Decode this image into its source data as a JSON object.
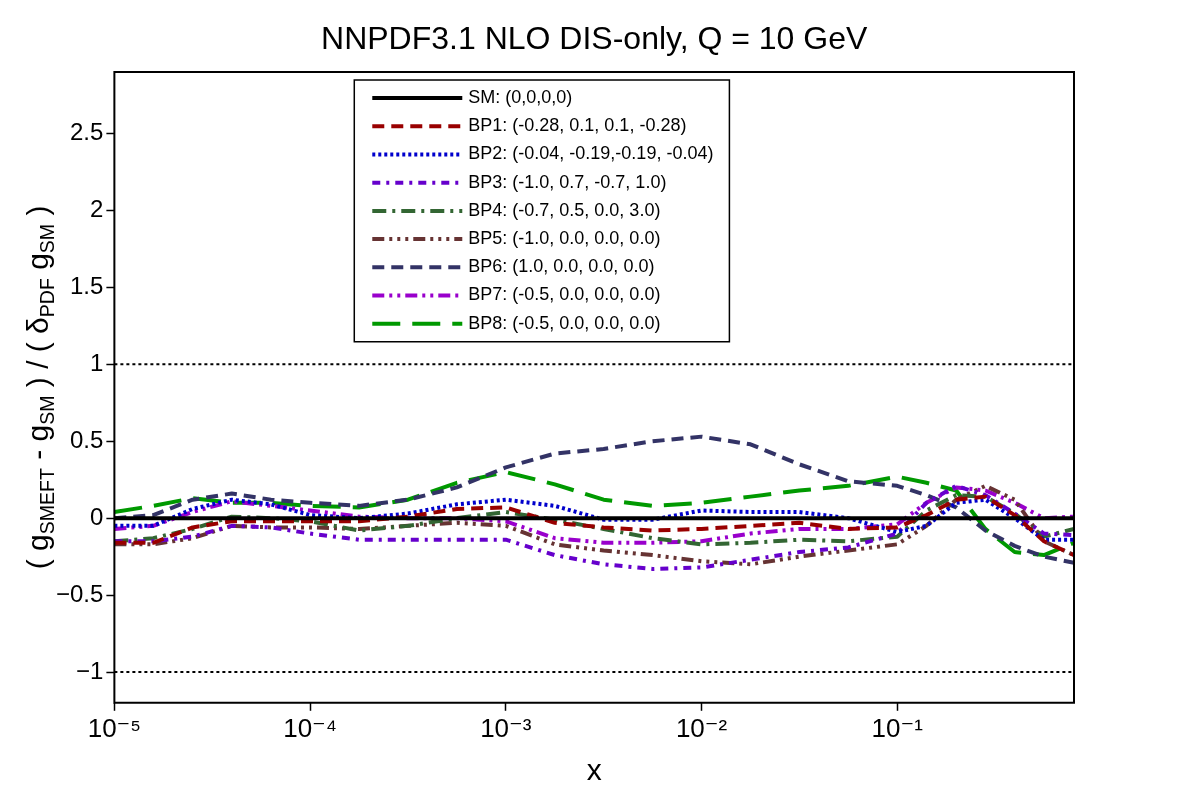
{
  "chart_data": {
    "type": "line",
    "title": "NNPDF3.1 NLO DIS-only, Q = 10 GeV",
    "xlabel": "x",
    "ylabel": "( g$_{SMEFT}$ - g$_{SM}$ ) / ( δ$_{PDF}$ g$_{SM}$ )",
    "x": [
      1e-05,
      1.58e-05,
      2.51e-05,
      3.98e-05,
      6.31e-05,
      0.0001,
      0.000178,
      0.000316,
      0.000562,
      0.001,
      0.00178,
      0.00316,
      0.00562,
      0.01,
      0.0178,
      0.0316,
      0.0562,
      0.1,
      0.141,
      0.2,
      0.282,
      0.398,
      0.562,
      0.8
    ],
    "series": [
      {
        "name": "SM: (0,0,0,0)",
        "color": "#000000",
        "line_style": "solid",
        "values": [
          0,
          0,
          0,
          0,
          0,
          0,
          0,
          0,
          0,
          0,
          0,
          0,
          0,
          0,
          0,
          0,
          0,
          0,
          0,
          0,
          0,
          0,
          0,
          0
        ]
      },
      {
        "name": "BP1: (-0.28, 0.1, 0.1, -0.28)",
        "color": "#990000",
        "line_style": "dashed",
        "values": [
          -0.16,
          -0.16,
          -0.06,
          -0.02,
          -0.02,
          -0.02,
          -0.02,
          0.01,
          0.06,
          0.07,
          -0.03,
          -0.06,
          -0.08,
          -0.07,
          -0.05,
          -0.03,
          -0.07,
          -0.06,
          0.02,
          0.12,
          0.14,
          0.02,
          -0.15,
          -0.24
        ]
      },
      {
        "name": "BP2: (-0.04, -0.19,-0.19, -0.04)",
        "color": "#0000cc",
        "line_style": "dotted",
        "values": [
          -0.05,
          -0.05,
          0.06,
          0.12,
          0.09,
          0.02,
          0,
          0.03,
          0.09,
          0.12,
          0.08,
          -0.01,
          -0.01,
          0.05,
          0.04,
          0.04,
          0,
          -0.09,
          -0.05,
          0.1,
          0.12,
          0,
          -0.14,
          -0.14
        ]
      },
      {
        "name": "BP3: (-1.0, 0.7, -0.7, 1.0)",
        "color": "#6600cc",
        "line_style": "dashdot",
        "values": [
          -0.15,
          -0.15,
          -0.12,
          -0.05,
          -0.06,
          -0.1,
          -0.14,
          -0.14,
          -0.14,
          -0.14,
          -0.24,
          -0.3,
          -0.33,
          -0.32,
          -0.27,
          -0.22,
          -0.19,
          -0.1,
          0.1,
          0.21,
          0.15,
          0.03,
          -0.1,
          -0.11
        ]
      },
      {
        "name": "BP4: (-0.7, 0.5, 0.0, 3.0)",
        "color": "#336633",
        "line_style": "longdashdot",
        "values": [
          -0.15,
          -0.13,
          -0.07,
          0.01,
          0,
          -0.02,
          -0.08,
          -0.05,
          0,
          0.04,
          -0.01,
          -0.07,
          -0.13,
          -0.17,
          -0.16,
          -0.14,
          -0.15,
          -0.12,
          0.05,
          0.15,
          0.14,
          0.03,
          -0.12,
          -0.07
        ]
      },
      {
        "name": "BP5: (-1.0, 0.0, 0.0, 0.0)",
        "color": "#663333",
        "line_style": "dashdotdotdot",
        "values": [
          -0.17,
          -0.17,
          -0.13,
          -0.05,
          -0.06,
          -0.06,
          -0.07,
          -0.05,
          -0.03,
          -0.05,
          -0.17,
          -0.21,
          -0.24,
          -0.28,
          -0.3,
          -0.25,
          -0.21,
          -0.17,
          -0.05,
          0.12,
          0.21,
          0.12,
          -0.15,
          -0.24
        ]
      },
      {
        "name": "BP6: (1.0, 0.0, 0.0, 0.0)",
        "color": "#333366",
        "line_style": "dashed",
        "values": [
          0,
          0.02,
          0.12,
          0.16,
          0.12,
          0.1,
          0.08,
          0.12,
          0.2,
          0.33,
          0.42,
          0.45,
          0.5,
          0.53,
          0.48,
          0.35,
          0.24,
          0.21,
          0.15,
          0.07,
          -0.08,
          -0.18,
          -0.25,
          -0.29
        ]
      },
      {
        "name": "BP7: (-0.5, 0.0, 0.0, 0.0)",
        "color": "#9900cc",
        "line_style": "dashdotdot",
        "values": [
          -0.07,
          -0.05,
          0.04,
          0.11,
          0.08,
          0.05,
          0.01,
          0,
          0,
          -0.02,
          -0.13,
          -0.16,
          -0.16,
          -0.15,
          -0.1,
          -0.07,
          -0.07,
          -0.04,
          0.1,
          0.2,
          0.18,
          0.1,
          0,
          0.01
        ]
      },
      {
        "name": "BP8: (-0.5, 0.0, 0.0, 0.0)",
        "color": "#009900",
        "line_style": "longdashed",
        "values": [
          0.04,
          0.08,
          0.13,
          0.1,
          0.1,
          0.08,
          0.07,
          0.12,
          0.23,
          0.3,
          0.22,
          0.12,
          0.08,
          0.1,
          0.14,
          0.18,
          0.21,
          0.27,
          0.23,
          0.18,
          -0.07,
          -0.22,
          -0.24,
          -0.16
        ]
      }
    ],
    "xlim": [
      1e-05,
      0.8
    ],
    "log": "x",
    "xticks": [
      {
        "value": 1e-05,
        "label": "10⁻⁵"
      },
      {
        "value": 0.0001,
        "label": "10⁻⁴"
      },
      {
        "value": 0.001,
        "label": "10⁻³"
      },
      {
        "value": 0.01,
        "label": "10⁻²"
      },
      {
        "value": 0.1,
        "label": "10⁻¹"
      }
    ],
    "ylim": [
      -1.2,
      2.9
    ],
    "yticks": [
      {
        "value": -1,
        "label": "−1"
      },
      {
        "value": -0.5,
        "label": "−0.5"
      },
      0,
      0.5,
      1,
      1.5,
      2,
      2.5
    ],
    "ref_lines": [
      {
        "axis": "y",
        "value": 1,
        "color": "#000000",
        "line_style": "dotted"
      },
      {
        "axis": "y",
        "value": -1,
        "color": "#000000",
        "line_style": "dotted"
      }
    ],
    "grid": false,
    "legend": "top",
    "marker": "none"
  }
}
